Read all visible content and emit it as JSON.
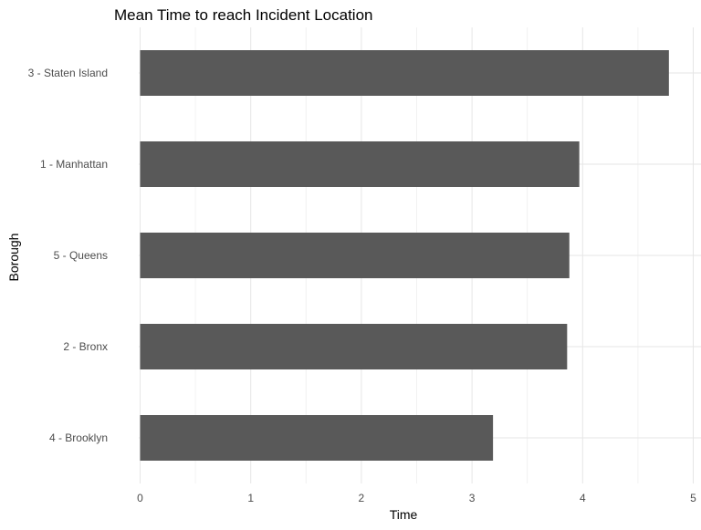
{
  "chart_data": {
    "type": "bar",
    "orientation": "horizontal",
    "title": "Mean Time to reach Incident Location",
    "xlabel": "Time",
    "ylabel": "Borough",
    "categories": [
      "3 - Staten Island",
      "1 - Manhattan",
      "5 - Queens",
      "2 - Bronx",
      "4 - Brooklyn"
    ],
    "values": [
      4.78,
      3.97,
      3.88,
      3.86,
      3.19
    ],
    "xlim": [
      0,
      5
    ],
    "xticks": [
      "0",
      "1",
      "2",
      "3",
      "4",
      "5"
    ],
    "grid": true,
    "bar_color": "#595959"
  }
}
